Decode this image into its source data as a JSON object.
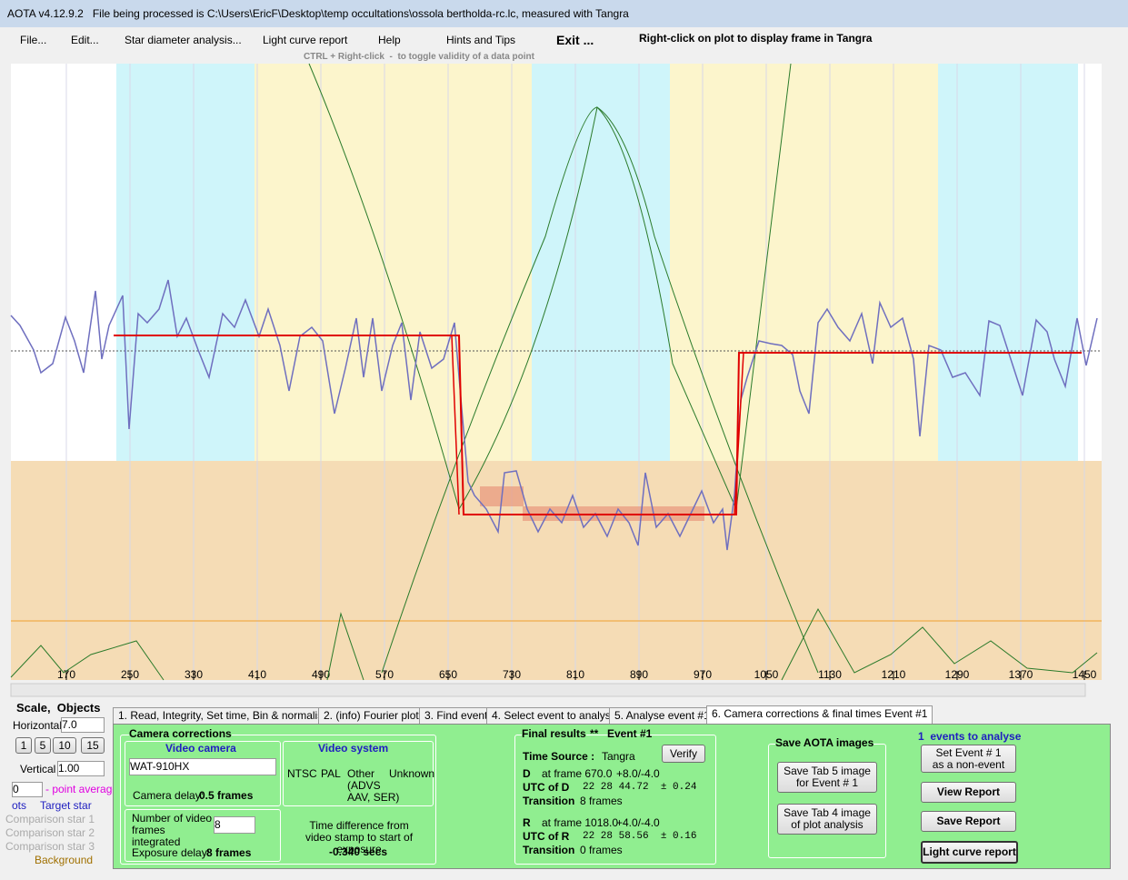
{
  "window": {
    "title": "AOTA v4.12.9.2   File being processed is C:\\Users\\EricF\\Desktop\\temp occultations\\ossola bertholda-rc.lc, measured with Tangra"
  },
  "menu": {
    "items": [
      "File...",
      "Edit...",
      "Star diameter analysis...",
      "Light curve report",
      "Help",
      "Hints and Tips",
      "Exit ..."
    ],
    "hint": "Right-click on plot to display frame in Tangra",
    "subhint": "CTRL + Right-click  -  to toggle validity of a data point"
  },
  "plot": {
    "x_ticks": [
      170,
      250,
      330,
      410,
      490,
      570,
      650,
      730,
      810,
      890,
      970,
      1050,
      1130,
      1210,
      1290,
      1370,
      1450
    ]
  },
  "left_panel": {
    "heading": "Scale,  Objects",
    "horizontal_label": "Horizontal",
    "horizontal_value": "7.0",
    "scale_buttons": [
      "1",
      "5",
      "10",
      "15"
    ],
    "vertical_label": "Vertical",
    "vertical_value": "1.00",
    "average_value": "0",
    "average_label": "- point average",
    "plots_label": "ots",
    "objects": [
      "Target star",
      "Comparison star 1",
      "Comparison star 2",
      "Comparison star 3",
      "Background"
    ]
  },
  "tabs": [
    "1. Read, Integrity, Set time, Bin & normalise",
    "2. (info)  Fourier plot",
    "3. Find events",
    "4. Select event to analyse",
    "5. Analyse event #1",
    "6. Camera corrections & final times Event #1"
  ],
  "camera": {
    "title": "Camera corrections",
    "video_camera": "Video camera",
    "camera_model": "WAT-910HX",
    "camera_delay_label": "Camera delay:",
    "camera_delay": "0.5 frames",
    "video_system": "Video system",
    "systems": [
      "NTSC",
      "PAL",
      "Other",
      "Unknown"
    ],
    "other_note": "(ADVS\nAAV, SER)",
    "frames_label": "Number of video frames integrated",
    "frames_value": "8",
    "exposure_delay_label": "Exposure delay:",
    "exposure_delay": "8 frames",
    "time_diff_label": "Time difference from video stamp to start of exposure",
    "time_diff": "-0.340 secs"
  },
  "results": {
    "title": "Final results",
    "stars": "**",
    "event": "Event #1",
    "time_source_label": "Time Source :",
    "time_source": "Tangra",
    "verify": "Verify",
    "d": {
      "label": "D",
      "frame": "at frame 670.0",
      "err": "+8.0/-4.0",
      "utc_label": "UTC of D",
      "utc": "22 28 44.72  ± 0.24",
      "transition_label": "Transition",
      "transition": "8 frames"
    },
    "r": {
      "label": "R",
      "frame": "at frame 1018.0",
      "err": "+4.0/-4.0",
      "utc_label": "UTC of R",
      "utc": "22 28 58.56  ± 0.16",
      "transition_label": "Transition",
      "transition": "0 frames"
    }
  },
  "save": {
    "title": "Save AOTA images",
    "button5": "Save Tab 5 image\nfor Event # 1",
    "button4": "Save Tab 4 image\nof plot analysis"
  },
  "events": {
    "title": "1  events to analyse",
    "non_event": "Set Event # 1\nas a non-event",
    "view_report": "View Report",
    "save_report": "Save Report",
    "light_curve_report": "Light curve report"
  }
}
